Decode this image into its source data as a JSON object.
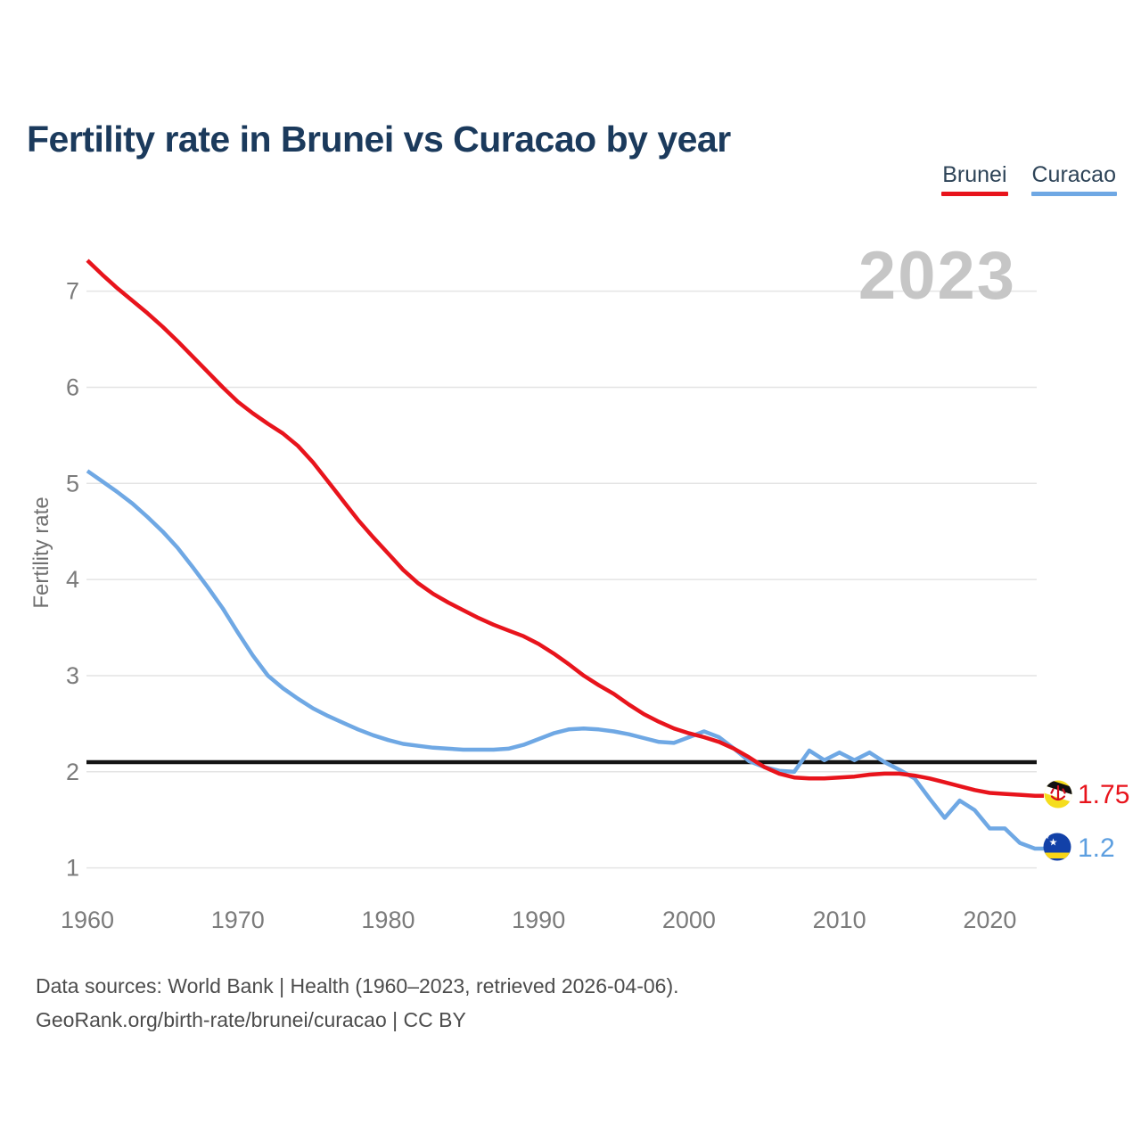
{
  "title": "Fertility rate in Brunei vs Curacao by year",
  "watermark": "2023",
  "legend": [
    {
      "label": "Brunei",
      "color": "#e8141c"
    },
    {
      "label": "Curacao",
      "color": "#6fa8e4"
    }
  ],
  "end_labels": [
    {
      "series": "Brunei",
      "value": "1.75",
      "color": "#e8141c"
    },
    {
      "series": "Curacao",
      "value": "1.2",
      "color": "#5d9fe0"
    }
  ],
  "footer": {
    "line1": "Data sources: World Bank | Health (1960–2023, retrieved 2026-04-06).",
    "line2": "GeoRank.org/birth-rate/brunei/curacao | CC BY"
  },
  "chart_data": {
    "type": "line",
    "title": "Fertility rate in Brunei vs Curacao by year",
    "xlabel": "",
    "ylabel": "Fertility rate",
    "xlim": [
      1960,
      2023
    ],
    "ylim": [
      1,
      7.4
    ],
    "grid": true,
    "legend_position": "top-right",
    "replacement_line": 2.1,
    "replacement_line_color": "#141414",
    "grid_color": "#e4e4e4",
    "xticks": [
      1960,
      1970,
      1980,
      1990,
      2000,
      2010,
      2020
    ],
    "yticks": [
      1,
      2,
      3,
      4,
      5,
      6,
      7
    ],
    "x": [
      1960,
      1961,
      1962,
      1963,
      1964,
      1965,
      1966,
      1967,
      1968,
      1969,
      1970,
      1971,
      1972,
      1973,
      1974,
      1975,
      1976,
      1977,
      1978,
      1979,
      1980,
      1981,
      1982,
      1983,
      1984,
      1985,
      1986,
      1987,
      1988,
      1989,
      1990,
      1991,
      1992,
      1993,
      1994,
      1995,
      1996,
      1997,
      1998,
      1999,
      2000,
      2001,
      2002,
      2003,
      2004,
      2005,
      2006,
      2007,
      2008,
      2009,
      2010,
      2011,
      2012,
      2013,
      2014,
      2015,
      2016,
      2017,
      2018,
      2019,
      2020,
      2021,
      2022,
      2023
    ],
    "series": [
      {
        "name": "Brunei",
        "color": "#e8141c",
        "final_value": 1.75,
        "values": [
          7.32,
          7.17,
          7.03,
          6.9,
          6.77,
          6.63,
          6.48,
          6.32,
          6.16,
          6.0,
          5.85,
          5.73,
          5.62,
          5.52,
          5.39,
          5.22,
          5.02,
          4.82,
          4.62,
          4.44,
          4.27,
          4.1,
          3.96,
          3.85,
          3.76,
          3.68,
          3.6,
          3.53,
          3.47,
          3.41,
          3.33,
          3.23,
          3.12,
          3.0,
          2.9,
          2.81,
          2.7,
          2.6,
          2.52,
          2.45,
          2.4,
          2.36,
          2.31,
          2.24,
          2.15,
          2.05,
          1.98,
          1.94,
          1.93,
          1.93,
          1.94,
          1.95,
          1.97,
          1.98,
          1.98,
          1.96,
          1.93,
          1.89,
          1.85,
          1.81,
          1.78,
          1.77,
          1.76,
          1.75
        ]
      },
      {
        "name": "Curacao",
        "color": "#6fa8e4",
        "final_value": 1.2,
        "values": [
          5.13,
          5.02,
          4.91,
          4.79,
          4.65,
          4.5,
          4.33,
          4.13,
          3.92,
          3.7,
          3.45,
          3.21,
          3.0,
          2.87,
          2.76,
          2.66,
          2.58,
          2.51,
          2.44,
          2.38,
          2.33,
          2.29,
          2.27,
          2.25,
          2.24,
          2.23,
          2.23,
          2.23,
          2.24,
          2.28,
          2.34,
          2.4,
          2.44,
          2.45,
          2.44,
          2.42,
          2.39,
          2.35,
          2.31,
          2.3,
          2.36,
          2.42,
          2.36,
          2.24,
          2.11,
          2.05,
          2.01,
          2.0,
          2.22,
          2.12,
          2.2,
          2.12,
          2.2,
          2.1,
          2.02,
          1.93,
          1.72,
          1.52,
          1.7,
          1.6,
          1.41,
          1.41,
          1.26,
          1.2
        ]
      }
    ]
  }
}
